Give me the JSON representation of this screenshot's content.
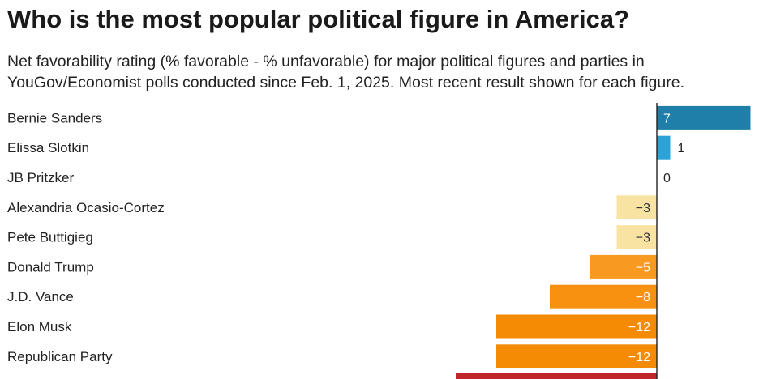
{
  "title": "Who is the most popular political figure in America?",
  "subtitle_lines": [
    "Net favorability rating (% favorable - % unfavorable) for major political figures and parties in",
    "YouGov/Economist polls conducted since Feb. 1, 2025. Most recent result shown for each figure."
  ],
  "chart_data": {
    "type": "bar",
    "orientation": "horizontal",
    "title": "Who is the most popular political figure in America?",
    "categories": [
      "Bernie Sanders",
      "Elissa Slotkin",
      "JB Pritzker",
      "Alexandria Ocasio-Cortez",
      "Pete Buttigieg",
      "Donald Trump",
      "J.D. Vance",
      "Elon Musk",
      "Republican Party"
    ],
    "values": [
      7,
      1,
      0,
      -3,
      -3,
      -5,
      -8,
      -12,
      -12
    ],
    "value_labels": [
      "7",
      "1",
      "0",
      "−3",
      "−3",
      "−5",
      "−8",
      "−12",
      "−12"
    ],
    "colors": [
      "#1f7fa8",
      "#2ba3d6",
      "#2ba3d6",
      "#f9e3a3",
      "#f9e3a3",
      "#f79a1f",
      "#f7910f",
      "#f58a05",
      "#f58a05"
    ],
    "label_colors": [
      "#ffffff",
      "#222222",
      "#222222",
      "#333333",
      "#333333",
      "#ffffff",
      "#ffffff",
      "#ffffff",
      "#ffffff"
    ],
    "truncated_bar_color": "#c0272d"
  }
}
